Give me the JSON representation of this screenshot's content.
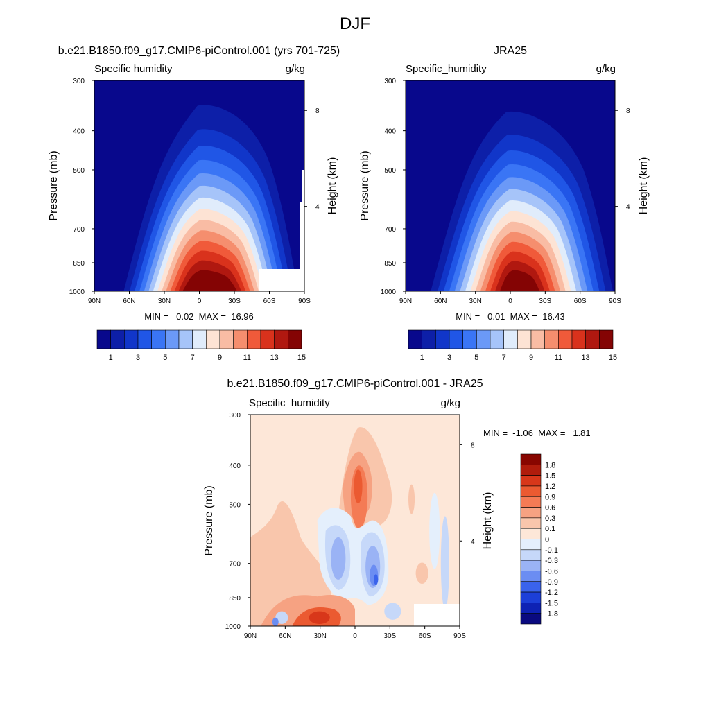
{
  "figure": {
    "title": "DJF"
  },
  "colors": {
    "cbar13": [
      "#08088c",
      "#0d1fa8",
      "#1136c9",
      "#2056e6",
      "#3a75f5",
      "#6b99f7",
      "#a6c4f9",
      "#e0ecfb",
      "#fde3d4",
      "#f9bca4",
      "#f58e6e",
      "#f05a3a",
      "#d9321c",
      "#b01810",
      "#840404"
    ],
    "diff": [
      "#0a0a80",
      "#0e22b4",
      "#1c3fd8",
      "#3a63ec",
      "#6b8df2",
      "#9ab3f5",
      "#c6d8f9",
      "#e4effc",
      "#fde7d8",
      "#f9c6ac",
      "#f6a282",
      "#f47b55",
      "#eb5a31",
      "#d8371a",
      "#b01c0c",
      "#880600"
    ]
  },
  "chart_data": [
    {
      "id": "model",
      "type": "contour",
      "title": "b.e21.B1850.f09_g17.CMIP6-piControl.001 (yrs 701-725)",
      "left_label": "Specific humidity",
      "right_label": "g/kg",
      "ylabel": "Pressure (mb)",
      "ylabel_right": "Height (km)",
      "x_ticks": [
        "90N",
        "60N",
        "30N",
        "0",
        "30S",
        "60S",
        "90S"
      ],
      "x_values": [
        90,
        60,
        30,
        0,
        -30,
        -60,
        -90
      ],
      "y_ticks": [
        300,
        400,
        500,
        700,
        850,
        1000
      ],
      "right_ticks": [
        "8",
        "4"
      ],
      "stats": "MIN =   0.02  MAX =  16.96",
      "peak_value": 16.96,
      "min_value": 0.02,
      "colorbar_levels": [
        "1",
        "3",
        "5",
        "7",
        "9",
        "11",
        "13",
        "15"
      ]
    },
    {
      "id": "obs",
      "type": "contour",
      "title": "JRA25",
      "left_label": "Specific_humidity",
      "right_label": "g/kg",
      "ylabel": "Pressure (mb)",
      "ylabel_right": "Height (km)",
      "x_ticks": [
        "90N",
        "60N",
        "30N",
        "0",
        "30S",
        "60S",
        "90S"
      ],
      "x_values": [
        90,
        60,
        30,
        0,
        -30,
        -60,
        -90
      ],
      "y_ticks": [
        300,
        400,
        500,
        700,
        850,
        1000
      ],
      "right_ticks": [
        "8",
        "4"
      ],
      "stats": "MIN =   0.01  MAX =  16.43",
      "peak_value": 16.43,
      "min_value": 0.01,
      "colorbar_levels": [
        "1",
        "3",
        "5",
        "7",
        "9",
        "11",
        "13",
        "15"
      ]
    },
    {
      "id": "diff",
      "type": "contour",
      "title": "b.e21.B1850.f09_g17.CMIP6-piControl.001 - JRA25",
      "left_label": "Specific_humidity",
      "right_label": "g/kg",
      "ylabel": "Pressure (mb)",
      "ylabel_right": "Height (km)",
      "x_ticks": [
        "90N",
        "60N",
        "30N",
        "0",
        "30S",
        "60S",
        "90S"
      ],
      "x_values": [
        90,
        60,
        30,
        0,
        -30,
        -60,
        -90
      ],
      "y_ticks": [
        300,
        400,
        500,
        700,
        850,
        1000
      ],
      "right_ticks": [
        "8",
        "4"
      ],
      "stats": "MIN =  -1.06  MAX =   1.81",
      "min_value": -1.06,
      "max_value": 1.81,
      "colorbar_levels": [
        "1.8",
        "1.5",
        "1.2",
        "0.9",
        "0.6",
        "0.3",
        "0.1",
        "0",
        "-0.1",
        "-0.3",
        "-0.6",
        "-0.9",
        "-1.2",
        "-1.5",
        "-1.8"
      ]
    }
  ]
}
